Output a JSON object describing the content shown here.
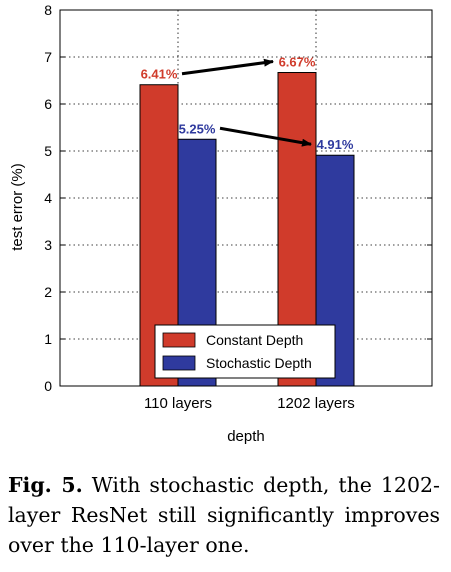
{
  "chart_data": {
    "type": "bar",
    "categories": [
      "110 layers",
      "1202 layers"
    ],
    "series": [
      {
        "name": "Constant Depth",
        "values": [
          6.41,
          6.67
        ],
        "labels": [
          "6.41%",
          "6.67%"
        ],
        "color": "#d03b2b"
      },
      {
        "name": "Stochastic Depth",
        "values": [
          5.25,
          4.91
        ],
        "labels": [
          "5.25%",
          "4.91%"
        ],
        "color": "#2f3a9e"
      }
    ],
    "xlabel": "depth",
    "ylabel": "test error (%)",
    "ylim": [
      0,
      8
    ],
    "yticks": [
      "0",
      "1",
      "2",
      "3",
      "4",
      "5",
      "6",
      "7",
      "8"
    ],
    "grid": true,
    "legend_position": "bottom-center",
    "annotations": [
      "arrow from 6.41% (110 layers) to 6.67% (1202 layers)",
      "arrow from 5.25% (110 layers) to 4.91% (1202 layers)"
    ]
  },
  "caption": {
    "label": "Fig. 5.",
    "text": "With stochastic depth, the 1202-layer ResNet still significantly improves over the 110-layer one."
  }
}
